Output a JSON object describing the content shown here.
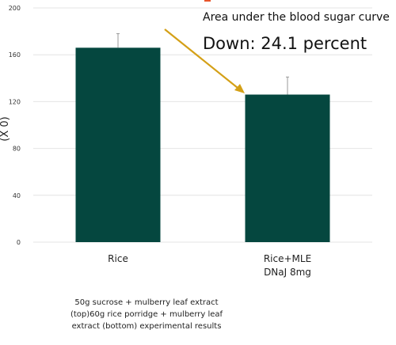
{
  "chart_data": {
    "type": "bar",
    "categories": [
      "Rice",
      "Rice+MLE DNaJ 8mg"
    ],
    "category_lines": [
      [
        "Rice"
      ],
      [
        "Rice+MLE",
        "DNaJ 8mg"
      ]
    ],
    "values": [
      166,
      126
    ],
    "error_upper": [
      178,
      141
    ],
    "ylim": [
      0,
      200
    ],
    "yticks": [
      "0",
      "40",
      "80",
      "120",
      "160",
      "200"
    ],
    "ylabel": "(X 0)",
    "bar_color": "#05473f",
    "grid": true,
    "annotation": {
      "title": "Area under the blood sugar curve",
      "delta_text": "Down: 24.1 percent",
      "arrow_color": "#d4a017"
    }
  },
  "caption": {
    "line1": "50g sucrose + mulberry leaf extract",
    "line2": "(top)60g rice porridge + mulberry leaf",
    "line3": "extract (bottom) experimental results"
  },
  "colors": {
    "accent": "#e8542a"
  }
}
